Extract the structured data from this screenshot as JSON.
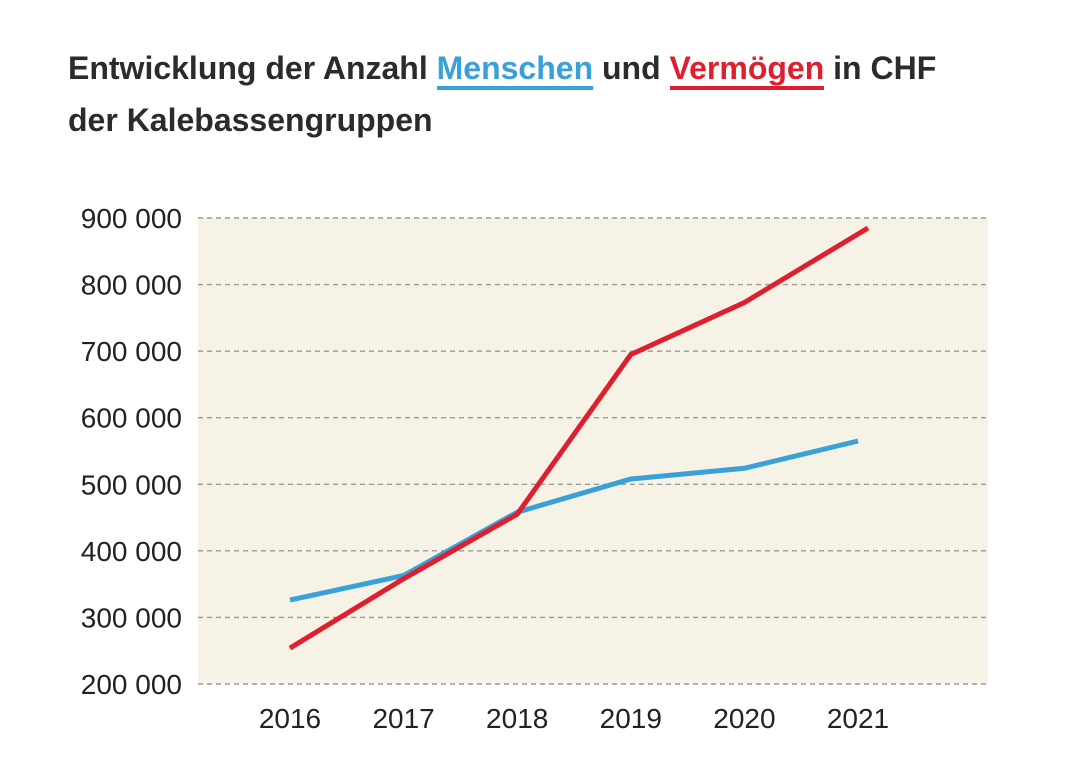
{
  "title": {
    "part1": "Entwicklung der Anzahl",
    "series_a": "Menschen",
    "part2": "und",
    "series_b": "Vermögen",
    "part3": "in CHF",
    "line2": "der Kalebassengruppen"
  },
  "colors": {
    "menschen": "#3aa0d8",
    "vermoegen": "#dd1f2e",
    "plot_background": "#f6f3e6",
    "grid": "#9a9a9a"
  },
  "chart_data": {
    "type": "line",
    "title": "Entwicklung der Anzahl Menschen und Vermögen in CHF der Kalebassengruppen",
    "categories": [
      "2016",
      "2017",
      "2018",
      "2019",
      "2020",
      "2021"
    ],
    "series": [
      {
        "name": "Menschen",
        "values": [
          326000,
          363000,
          458000,
          508000,
          524000,
          565000
        ]
      },
      {
        "name": "Vermögen",
        "values": [
          254000,
          358000,
          455000,
          695000,
          773000,
          885000
        ]
      }
    ],
    "ylim": [
      200000,
      900000
    ],
    "yticks": [
      {
        "value": 900000,
        "label": "900 000"
      },
      {
        "value": 800000,
        "label": "800 000"
      },
      {
        "value": 700000,
        "label": "700 000"
      },
      {
        "value": 600000,
        "label": "600 000"
      },
      {
        "value": 500000,
        "label": "500 000"
      },
      {
        "value": 400000,
        "label": "400 000"
      },
      {
        "value": 300000,
        "label": "300 000"
      },
      {
        "value": 200000,
        "label": "200 000"
      }
    ],
    "grid": true,
    "legend": "in title"
  }
}
